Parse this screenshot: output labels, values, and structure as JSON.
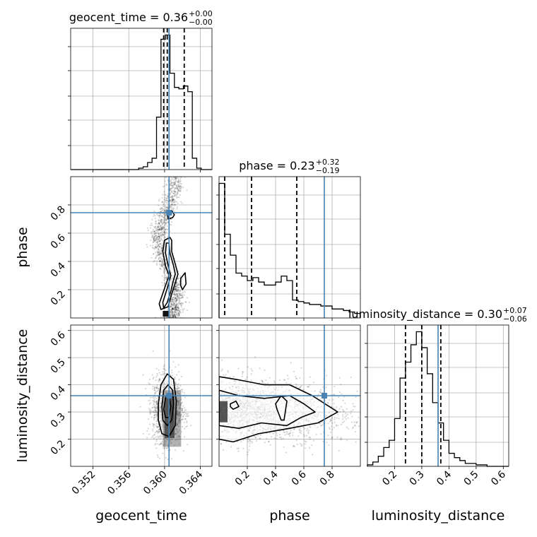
{
  "chart_data": {
    "type": "corner",
    "parameters": [
      "geocent_time",
      "phase",
      "luminosity_distance"
    ],
    "axis_labels": [
      "geocent_time",
      "phase",
      "luminosity_distance"
    ],
    "ranges": [
      [
        0.3495,
        0.3653
      ],
      [
        0.0,
        1.0
      ],
      [
        0.1,
        0.62
      ]
    ],
    "truths": [
      0.3605,
      0.745,
      0.36
    ],
    "truth_color": "#4682b4",
    "titles": [
      {
        "param": "geocent_time",
        "median": "0.36",
        "plus": "+0.00",
        "minus": "−0.00"
      },
      {
        "param": "phase",
        "median": "0.23",
        "plus": "+0.32",
        "minus": "−0.19"
      },
      {
        "param": "luminosity_distance",
        "median": "0.30",
        "plus": "+0.07",
        "minus": "−0.06"
      }
    ],
    "ticks": {
      "geocent_time": [
        {
          "v": 0.352,
          "label": "0.352"
        },
        {
          "v": 0.356,
          "label": "0.356"
        },
        {
          "v": 0.36,
          "label": "0.360"
        },
        {
          "v": 0.364,
          "label": "0.364"
        }
      ],
      "phase": [
        {
          "v": 0.2,
          "label": "0.2"
        },
        {
          "v": 0.4,
          "label": "0.4"
        },
        {
          "v": 0.6,
          "label": "0.6"
        },
        {
          "v": 0.8,
          "label": "0.8"
        }
      ],
      "luminosity_distance": [
        {
          "v": 0.2,
          "label": "0.2"
        },
        {
          "v": 0.3,
          "label": "0.3"
        },
        {
          "v": 0.4,
          "label": "0.4"
        },
        {
          "v": 0.5,
          "label": "0.5"
        },
        {
          "v": 0.6,
          "label": "0.6"
        }
      ]
    },
    "histograms": {
      "geocent_time": {
        "bin_edges": [
          0.3571,
          0.3576,
          0.3581,
          0.3586,
          0.3591,
          0.3596,
          0.3601,
          0.3606,
          0.3611,
          0.3616,
          0.3621,
          0.3626,
          0.3631,
          0.3636,
          0.3641
        ],
        "counts": [
          0.01,
          0.02,
          0.05,
          0.08,
          0.37,
          0.92,
          0.95,
          0.68,
          0.58,
          0.57,
          0.59,
          0.55,
          0.08,
          0.01
        ],
        "quantiles": [
          0.3599,
          0.3603,
          0.3622
        ]
      },
      "phase": {
        "bin_edges": [
          0.0,
          0.04,
          0.08,
          0.12,
          0.16,
          0.2,
          0.24,
          0.28,
          0.32,
          0.36,
          0.4,
          0.44,
          0.48,
          0.52,
          0.56,
          0.6,
          0.64,
          0.68,
          0.72,
          0.76,
          0.8,
          0.84,
          0.88,
          0.92,
          0.96,
          1.0
        ],
        "counts": [
          0.9,
          0.56,
          0.42,
          0.3,
          0.28,
          0.25,
          0.27,
          0.24,
          0.22,
          0.22,
          0.24,
          0.28,
          0.25,
          0.12,
          0.11,
          0.1,
          0.09,
          0.09,
          0.08,
          0.08,
          0.06,
          0.06,
          0.05,
          0.04,
          0.03
        ],
        "quantiles": [
          0.04,
          0.23,
          0.55
        ]
      },
      "luminosity_distance": {
        "bin_edges": [
          0.1,
          0.12,
          0.14,
          0.16,
          0.18,
          0.2,
          0.22,
          0.24,
          0.26,
          0.28,
          0.3,
          0.32,
          0.34,
          0.36,
          0.38,
          0.4,
          0.42,
          0.44,
          0.46,
          0.48,
          0.5,
          0.52,
          0.54,
          0.56,
          0.58,
          0.6
        ],
        "counts": [
          0.01,
          0.03,
          0.07,
          0.13,
          0.18,
          0.33,
          0.61,
          0.72,
          0.84,
          0.93,
          0.82,
          0.64,
          0.44,
          0.3,
          0.18,
          0.09,
          0.06,
          0.04,
          0.02,
          0.02,
          0.01,
          0.01,
          0.0,
          0.0,
          0.0
        ],
        "quantiles": [
          0.24,
          0.3,
          0.37
        ]
      }
    },
    "contours": {
      "phase_vs_geocent_time": {
        "x_param": "geocent_time",
        "y_param": "phase",
        "levels": [
          [
            [
              0.3596,
              0.06
            ],
            [
              0.3604,
              0.08
            ],
            [
              0.3608,
              0.17
            ],
            [
              0.3612,
              0.25
            ],
            [
              0.3615,
              0.31
            ],
            [
              0.3612,
              0.38
            ],
            [
              0.3608,
              0.47
            ],
            [
              0.3608,
              0.55
            ],
            [
              0.3606,
              0.57
            ],
            [
              0.36,
              0.55
            ],
            [
              0.3598,
              0.47
            ],
            [
              0.3601,
              0.37
            ],
            [
              0.3605,
              0.3
            ],
            [
              0.36,
              0.21
            ],
            [
              0.3594,
              0.1
            ]
          ],
          [
            [
              0.3599,
              0.07
            ],
            [
              0.3603,
              0.11
            ],
            [
              0.3607,
              0.19
            ],
            [
              0.361,
              0.27
            ],
            [
              0.3612,
              0.31
            ],
            [
              0.361,
              0.37
            ],
            [
              0.3606,
              0.46
            ],
            [
              0.3605,
              0.53
            ],
            [
              0.3602,
              0.53
            ],
            [
              0.3601,
              0.46
            ],
            [
              0.3604,
              0.37
            ],
            [
              0.3607,
              0.3
            ],
            [
              0.3603,
              0.21
            ],
            [
              0.3598,
              0.11
            ]
          ],
          [
            [
              0.3604,
              0.7
            ],
            [
              0.3609,
              0.71
            ],
            [
              0.3611,
              0.73
            ],
            [
              0.3608,
              0.76
            ],
            [
              0.3603,
              0.75
            ]
          ],
          [
            [
              0.362,
              0.2
            ],
            [
              0.3624,
              0.24
            ],
            [
              0.3623,
              0.32
            ],
            [
              0.3618,
              0.28
            ],
            [
              0.3618,
              0.23
            ]
          ]
        ]
      },
      "luminosity_distance_vs_geocent_time": {
        "x_param": "geocent_time",
        "y_param": "luminosity_distance",
        "levels": [
          [
            [
              0.3593,
              0.33
            ],
            [
              0.3596,
              0.4
            ],
            [
              0.3603,
              0.44
            ],
            [
              0.361,
              0.42
            ],
            [
              0.3613,
              0.34
            ],
            [
              0.3612,
              0.25
            ],
            [
              0.3605,
              0.21
            ],
            [
              0.3597,
              0.22
            ],
            [
              0.3593,
              0.27
            ]
          ],
          [
            [
              0.3597,
              0.32
            ],
            [
              0.3599,
              0.38
            ],
            [
              0.3604,
              0.4
            ],
            [
              0.3609,
              0.38
            ],
            [
              0.361,
              0.33
            ],
            [
              0.3608,
              0.27
            ],
            [
              0.3603,
              0.25
            ],
            [
              0.3598,
              0.27
            ]
          ],
          [
            [
              0.3599,
              0.31
            ],
            [
              0.3601,
              0.35
            ],
            [
              0.3605,
              0.36
            ],
            [
              0.3607,
              0.32
            ],
            [
              0.3605,
              0.28
            ],
            [
              0.3601,
              0.28
            ]
          ]
        ]
      },
      "luminosity_distance_vs_phase": {
        "x_param": "phase",
        "y_param": "luminosity_distance",
        "levels": [
          [
            [
              0.0,
              0.43
            ],
            [
              0.12,
              0.42
            ],
            [
              0.32,
              0.4
            ],
            [
              0.5,
              0.4
            ],
            [
              0.66,
              0.36
            ],
            [
              0.84,
              0.3
            ],
            [
              0.7,
              0.26
            ],
            [
              0.5,
              0.24
            ],
            [
              0.28,
              0.22
            ],
            [
              0.1,
              0.19
            ],
            [
              0.0,
              0.2
            ]
          ],
          [
            [
              0.0,
              0.38
            ],
            [
              0.14,
              0.36
            ],
            [
              0.32,
              0.35
            ],
            [
              0.5,
              0.36
            ],
            [
              0.6,
              0.33
            ],
            [
              0.68,
              0.3
            ],
            [
              0.58,
              0.28
            ],
            [
              0.48,
              0.25
            ],
            [
              0.3,
              0.26
            ],
            [
              0.14,
              0.24
            ],
            [
              0.0,
              0.25
            ]
          ],
          [
            [
              0.08,
              0.33
            ],
            [
              0.12,
              0.34
            ],
            [
              0.14,
              0.32
            ],
            [
              0.1,
              0.31
            ],
            [
              0.08,
              0.32
            ]
          ],
          [
            [
              0.4,
              0.33
            ],
            [
              0.44,
              0.36
            ],
            [
              0.48,
              0.34
            ],
            [
              0.46,
              0.27
            ],
            [
              0.44,
              0.27
            ],
            [
              0.41,
              0.31
            ]
          ]
        ]
      }
    }
  }
}
